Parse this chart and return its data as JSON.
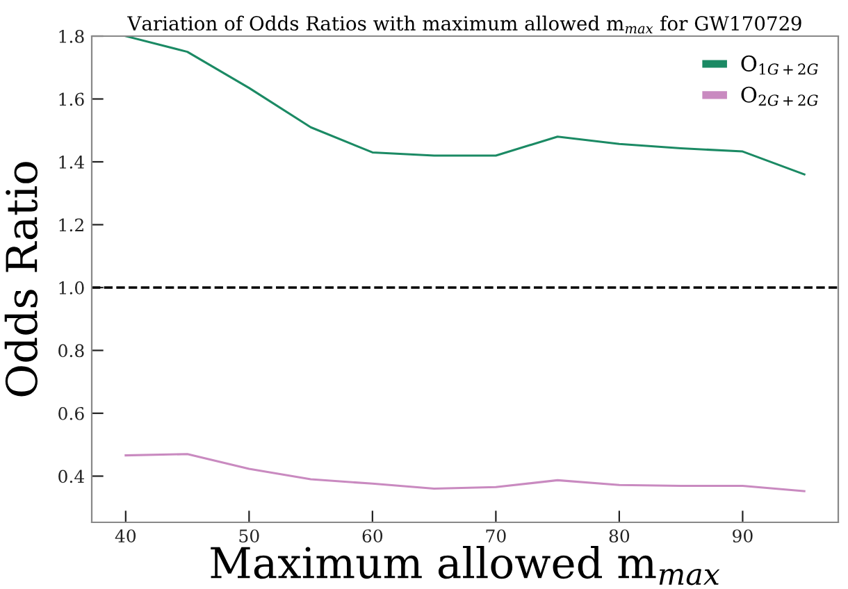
{
  "chart_data": {
    "type": "line",
    "title": "Variation of Odds Ratios with maximum allowed m$_{max}$ for GW170729",
    "xlabel": "Maximum allowed m$_{max}$",
    "ylabel": "Odds Ratio",
    "x": [
      40,
      45,
      50,
      55,
      60,
      65,
      70,
      75,
      80,
      85,
      90,
      95
    ],
    "series": [
      {
        "name": "O$_{1G+2G}$",
        "color": "#1b8a64",
        "values": [
          1.8,
          1.75,
          1.635,
          1.51,
          1.43,
          1.42,
          1.42,
          1.48,
          1.457,
          1.443,
          1.433,
          1.36
        ]
      },
      {
        "name": "O$_{2G+2G}$",
        "color": "#c98ac0",
        "values": [
          0.466,
          0.47,
          0.423,
          0.39,
          0.376,
          0.36,
          0.365,
          0.387,
          0.372,
          0.369,
          0.369,
          0.352
        ]
      }
    ],
    "xlim": [
      37.25,
      97.75
    ],
    "ylim": [
      0.253,
      1.8
    ],
    "xticks": [
      40,
      50,
      60,
      70,
      80,
      90
    ],
    "yticks": [
      0.4,
      0.6,
      0.8,
      {
        "value": 1,
        "label": "1.0"
      },
      1.2,
      1.4,
      1.6,
      1.8
    ],
    "ref_lines": [
      {
        "axis": "y",
        "value": 1.0,
        "color": "#000000",
        "line_style": "dashed"
      }
    ],
    "grid": false,
    "legend": "top right",
    "marker": "none",
    "line_style": "solid"
  }
}
